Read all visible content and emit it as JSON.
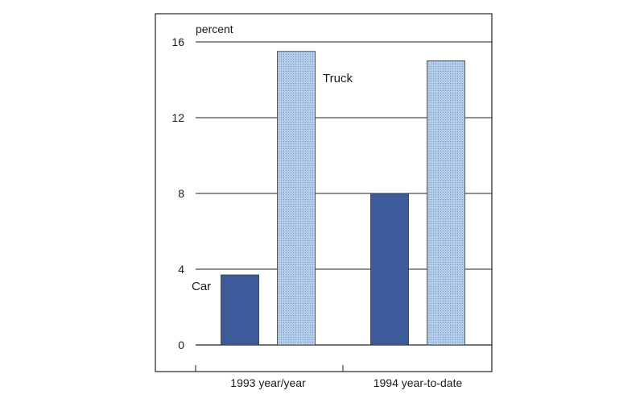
{
  "chart_data": {
    "type": "bar",
    "title": "",
    "xlabel": "",
    "ylabel": "percent",
    "categories": [
      "1993 year/year",
      "1994 year-to-date"
    ],
    "series": [
      {
        "name": "Car",
        "values": [
          3.7,
          8.0
        ]
      },
      {
        "name": "Truck",
        "values": [
          15.5,
          15.0
        ]
      }
    ],
    "ylim": [
      0,
      16
    ],
    "yticks": [
      0,
      4,
      8,
      12,
      16
    ],
    "grid": true,
    "legend": "inline labels next to bars",
    "colors": {
      "Car": "#3d5a9b",
      "Truck": "#a9c4e6",
      "frame": "#222222"
    }
  }
}
